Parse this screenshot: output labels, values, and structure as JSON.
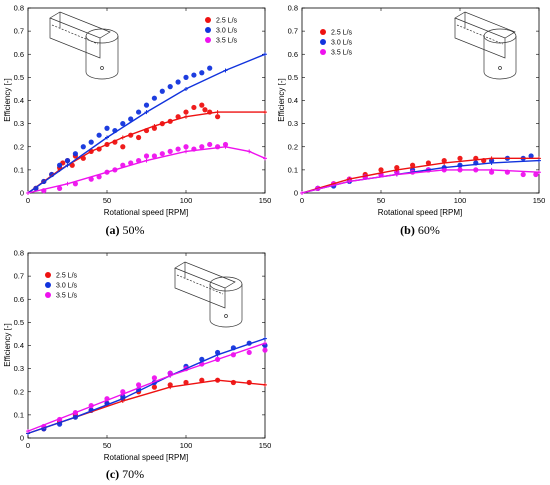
{
  "chart_data": [
    {
      "type": "scatter",
      "caption_tag": "(a)",
      "caption_text": "50%",
      "xlabel": "Rotational speed [RPM]",
      "ylabel": "Efficiency [-]",
      "xlim": [
        0,
        150
      ],
      "ylim": [
        0,
        0.8
      ],
      "xticks": [
        "0",
        "50",
        "100",
        "150"
      ],
      "yticks": [
        "0",
        "0.1",
        "0.2",
        "0.3",
        "0.4",
        "0.5",
        "0.6",
        "0.7",
        "0.8"
      ],
      "legend_position": "top-right",
      "series": [
        {
          "name": "2.5 L/s",
          "color": "#ee1111",
          "scatter": [
            [
              5,
              0.02
            ],
            [
              10,
              0.05
            ],
            [
              15,
              0.08
            ],
            [
              20,
              0.11
            ],
            [
              22,
              0.13
            ],
            [
              25,
              0.14
            ],
            [
              28,
              0.12
            ],
            [
              30,
              0.16
            ],
            [
              35,
              0.15
            ],
            [
              40,
              0.18
            ],
            [
              45,
              0.19
            ],
            [
              50,
              0.21
            ],
            [
              55,
              0.22
            ],
            [
              60,
              0.2
            ],
            [
              65,
              0.25
            ],
            [
              70,
              0.24
            ],
            [
              75,
              0.27
            ],
            [
              80,
              0.28
            ],
            [
              85,
              0.3
            ],
            [
              90,
              0.31
            ],
            [
              95,
              0.33
            ],
            [
              100,
              0.35
            ],
            [
              105,
              0.37
            ],
            [
              110,
              0.38
            ],
            [
              112,
              0.36
            ],
            [
              115,
              0.35
            ],
            [
              120,
              0.33
            ]
          ],
          "fit": [
            [
              0,
              0
            ],
            [
              20,
              0.1
            ],
            [
              40,
              0.18
            ],
            [
              60,
              0.24
            ],
            [
              80,
              0.29
            ],
            [
              100,
              0.33
            ],
            [
              120,
              0.35
            ],
            [
              150,
              0.35
            ]
          ]
        },
        {
          "name": "3.0 L/s",
          "color": "#1133dd",
          "scatter": [
            [
              5,
              0.02
            ],
            [
              10,
              0.05
            ],
            [
              15,
              0.08
            ],
            [
              20,
              0.12
            ],
            [
              25,
              0.14
            ],
            [
              30,
              0.17
            ],
            [
              35,
              0.2
            ],
            [
              40,
              0.22
            ],
            [
              45,
              0.25
            ],
            [
              50,
              0.28
            ],
            [
              55,
              0.27
            ],
            [
              60,
              0.3
            ],
            [
              65,
              0.32
            ],
            [
              70,
              0.35
            ],
            [
              75,
              0.38
            ],
            [
              80,
              0.41
            ],
            [
              85,
              0.44
            ],
            [
              90,
              0.46
            ],
            [
              95,
              0.48
            ],
            [
              100,
              0.5
            ],
            [
              105,
              0.51
            ],
            [
              110,
              0.52
            ],
            [
              115,
              0.54
            ]
          ],
          "fit": [
            [
              0,
              0
            ],
            [
              25,
              0.12
            ],
            [
              50,
              0.24
            ],
            [
              75,
              0.35
            ],
            [
              100,
              0.45
            ],
            [
              125,
              0.53
            ],
            [
              150,
              0.6
            ]
          ]
        },
        {
          "name": "3.5 L/s",
          "color": "#ee11ee",
          "scatter": [
            [
              10,
              0.01
            ],
            [
              20,
              0.02
            ],
            [
              30,
              0.04
            ],
            [
              40,
              0.06
            ],
            [
              45,
              0.07
            ],
            [
              50,
              0.09
            ],
            [
              55,
              0.1
            ],
            [
              60,
              0.12
            ],
            [
              65,
              0.13
            ],
            [
              70,
              0.14
            ],
            [
              75,
              0.16
            ],
            [
              80,
              0.16
            ],
            [
              85,
              0.17
            ],
            [
              90,
              0.18
            ],
            [
              95,
              0.19
            ],
            [
              100,
              0.2
            ],
            [
              105,
              0.19
            ],
            [
              110,
              0.2
            ],
            [
              115,
              0.21
            ],
            [
              120,
              0.2
            ],
            [
              125,
              0.21
            ]
          ],
          "fit": [
            [
              0,
              0
            ],
            [
              25,
              0.04
            ],
            [
              50,
              0.09
            ],
            [
              75,
              0.14
            ],
            [
              100,
              0.18
            ],
            [
              125,
              0.2
            ],
            [
              140,
              0.18
            ],
            [
              150,
              0.15
            ]
          ]
        }
      ]
    },
    {
      "type": "scatter",
      "caption_tag": "(b)",
      "caption_text": "60%",
      "xlabel": "Rotational speed [RPM]",
      "ylabel": "Efficiency [-]",
      "xlim": [
        0,
        150
      ],
      "ylim": [
        0,
        0.8
      ],
      "xticks": [
        "0",
        "50",
        "100",
        "150"
      ],
      "yticks": [
        "0",
        "0.1",
        "0.2",
        "0.3",
        "0.4",
        "0.5",
        "0.6",
        "0.7",
        "0.8"
      ],
      "legend_position": "top-left",
      "series": [
        {
          "name": "2.5 L/s",
          "color": "#ee1111",
          "scatter": [
            [
              10,
              0.02
            ],
            [
              20,
              0.04
            ],
            [
              30,
              0.06
            ],
            [
              40,
              0.08
            ],
            [
              50,
              0.1
            ],
            [
              60,
              0.11
            ],
            [
              70,
              0.12
            ],
            [
              80,
              0.13
            ],
            [
              90,
              0.14
            ],
            [
              100,
              0.15
            ],
            [
              110,
              0.15
            ],
            [
              115,
              0.14
            ]
          ],
          "fit": [
            [
              0,
              0
            ],
            [
              30,
              0.06
            ],
            [
              60,
              0.1
            ],
            [
              90,
              0.13
            ],
            [
              120,
              0.15
            ],
            [
              150,
              0.15
            ]
          ]
        },
        {
          "name": "3.0 L/s",
          "color": "#1133dd",
          "scatter": [
            [
              10,
              0.02
            ],
            [
              20,
              0.03
            ],
            [
              30,
              0.05
            ],
            [
              40,
              0.07
            ],
            [
              50,
              0.08
            ],
            [
              60,
              0.09
            ],
            [
              70,
              0.1
            ],
            [
              80,
              0.1
            ],
            [
              90,
              0.11
            ],
            [
              100,
              0.12
            ],
            [
              110,
              0.13
            ],
            [
              120,
              0.14
            ],
            [
              130,
              0.15
            ],
            [
              140,
              0.15
            ],
            [
              145,
              0.16
            ]
          ],
          "fit": [
            [
              0,
              0
            ],
            [
              30,
              0.05
            ],
            [
              60,
              0.08
            ],
            [
              90,
              0.11
            ],
            [
              120,
              0.13
            ],
            [
              150,
              0.14
            ]
          ]
        },
        {
          "name": "3.5 L/s",
          "color": "#ee11ee",
          "scatter": [
            [
              10,
              0.02
            ],
            [
              20,
              0.04
            ],
            [
              30,
              0.06
            ],
            [
              40,
              0.07
            ],
            [
              50,
              0.08
            ],
            [
              60,
              0.09
            ],
            [
              70,
              0.09
            ],
            [
              80,
              0.1
            ],
            [
              90,
              0.1
            ],
            [
              100,
              0.1
            ],
            [
              110,
              0.1
            ],
            [
              120,
              0.09
            ],
            [
              130,
              0.09
            ],
            [
              140,
              0.08
            ],
            [
              148,
              0.08
            ]
          ],
          "fit": [
            [
              0,
              0
            ],
            [
              30,
              0.05
            ],
            [
              60,
              0.08
            ],
            [
              90,
              0.1
            ],
            [
              120,
              0.1
            ],
            [
              150,
              0.09
            ]
          ]
        }
      ]
    },
    {
      "type": "scatter",
      "caption_tag": "(c)",
      "caption_text": "70%",
      "xlabel": "Rotational speed [RPM]",
      "ylabel": "Efficiency [-]",
      "xlim": [
        0,
        150
      ],
      "ylim": [
        0,
        0.8
      ],
      "xticks": [
        "0",
        "50",
        "100",
        "150"
      ],
      "yticks": [
        "0",
        "0.1",
        "0.2",
        "0.3",
        "0.4",
        "0.5",
        "0.6",
        "0.7",
        "0.8"
      ],
      "legend_position": "top-left",
      "series": [
        {
          "name": "2.5 L/s",
          "color": "#ee1111",
          "scatter": [
            [
              10,
              0.04
            ],
            [
              20,
              0.07
            ],
            [
              30,
              0.1
            ],
            [
              40,
              0.12
            ],
            [
              50,
              0.15
            ],
            [
              60,
              0.17
            ],
            [
              70,
              0.2
            ],
            [
              80,
              0.22
            ],
            [
              90,
              0.23
            ],
            [
              100,
              0.24
            ],
            [
              110,
              0.25
            ],
            [
              120,
              0.25
            ],
            [
              130,
              0.24
            ],
            [
              140,
              0.24
            ]
          ],
          "fit": [
            [
              0,
              0.02
            ],
            [
              30,
              0.09
            ],
            [
              60,
              0.16
            ],
            [
              90,
              0.22
            ],
            [
              120,
              0.25
            ],
            [
              150,
              0.23
            ]
          ]
        },
        {
          "name": "3.0 L/s",
          "color": "#1133dd",
          "scatter": [
            [
              10,
              0.04
            ],
            [
              20,
              0.06
            ],
            [
              30,
              0.09
            ],
            [
              40,
              0.12
            ],
            [
              50,
              0.15
            ],
            [
              60,
              0.18
            ],
            [
              70,
              0.21
            ],
            [
              80,
              0.24
            ],
            [
              90,
              0.28
            ],
            [
              100,
              0.31
            ],
            [
              110,
              0.34
            ],
            [
              120,
              0.37
            ],
            [
              130,
              0.39
            ],
            [
              140,
              0.41
            ],
            [
              150,
              0.4
            ]
          ],
          "fit": [
            [
              0,
              0.02
            ],
            [
              30,
              0.09
            ],
            [
              60,
              0.17
            ],
            [
              90,
              0.27
            ],
            [
              120,
              0.36
            ],
            [
              150,
              0.43
            ]
          ]
        },
        {
          "name": "3.5 L/s",
          "color": "#ee11ee",
          "scatter": [
            [
              10,
              0.05
            ],
            [
              20,
              0.08
            ],
            [
              30,
              0.11
            ],
            [
              40,
              0.14
            ],
            [
              50,
              0.17
            ],
            [
              60,
              0.2
            ],
            [
              70,
              0.23
            ],
            [
              80,
              0.26
            ],
            [
              90,
              0.28
            ],
            [
              100,
              0.3
            ],
            [
              110,
              0.32
            ],
            [
              120,
              0.34
            ],
            [
              130,
              0.36
            ],
            [
              140,
              0.37
            ],
            [
              150,
              0.38
            ]
          ],
          "fit": [
            [
              0,
              0.03
            ],
            [
              30,
              0.11
            ],
            [
              60,
              0.19
            ],
            [
              90,
              0.27
            ],
            [
              120,
              0.34
            ],
            [
              150,
              0.41
            ]
          ]
        }
      ]
    }
  ]
}
